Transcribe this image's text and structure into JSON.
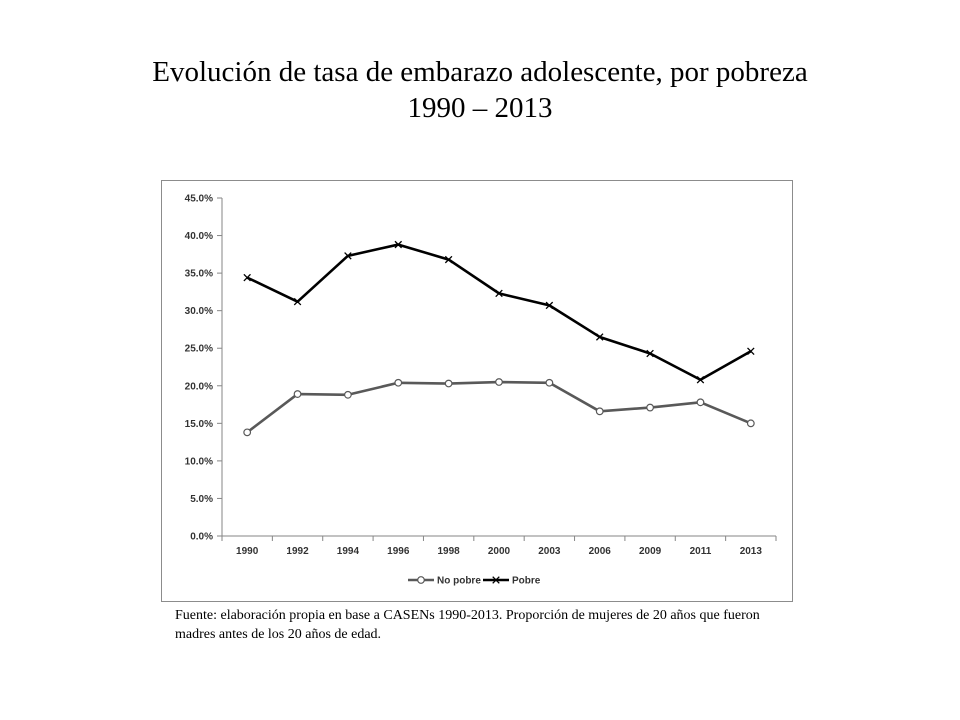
{
  "title": {
    "line1": "Evolución de tasa de embarazo adolescente, por pobreza",
    "line2": "1990 – 2013"
  },
  "source_note": "Fuente: elaboración propia en base a CASENs 1990-2013. Proporción de mujeres de 20 años que fueron madres antes de los 20 años de edad.",
  "chart_data": {
    "type": "line",
    "categories": [
      "1990",
      "1992",
      "1994",
      "1996",
      "1998",
      "2000",
      "2003",
      "2006",
      "2009",
      "2011",
      "2013"
    ],
    "ylim": [
      0,
      45
    ],
    "yticks": [
      0,
      5,
      10,
      15,
      20,
      25,
      30,
      35,
      40,
      45
    ],
    "ytick_labels": [
      "0.0%",
      "5.0%",
      "10.0%",
      "15.0%",
      "20.0%",
      "25.0%",
      "30.0%",
      "35.0%",
      "40.0%",
      "45.0%"
    ],
    "grid": false,
    "legend_position": "bottom",
    "series": [
      {
        "name": "No pobre",
        "marker": "circle",
        "color": "#595959",
        "values": [
          13.8,
          18.9,
          18.8,
          20.4,
          20.3,
          20.5,
          20.4,
          16.6,
          17.1,
          17.8,
          15.0
        ]
      },
      {
        "name": "Pobre",
        "marker": "x",
        "color": "#000000",
        "values": [
          34.4,
          31.2,
          37.3,
          38.8,
          36.8,
          32.3,
          30.7,
          26.5,
          24.3,
          20.8,
          24.6
        ]
      }
    ]
  }
}
